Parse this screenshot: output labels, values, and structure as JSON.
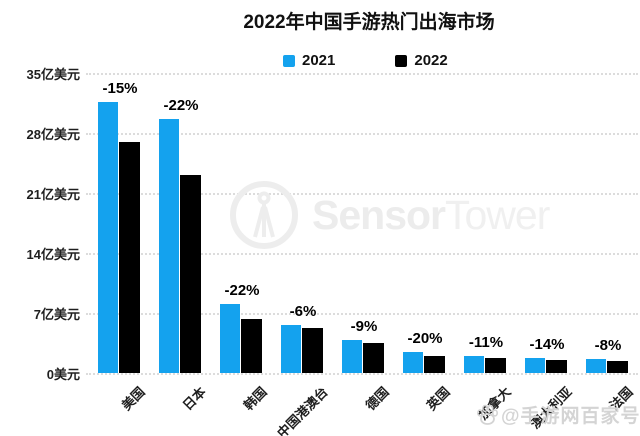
{
  "title": "2022年中国手游热门出海市场",
  "chart_data": {
    "type": "bar",
    "title": "2022年中国手游热门出海市场",
    "categories": [
      "美国",
      "日本",
      "韩国",
      "中国港澳台",
      "德国",
      "英国",
      "加拿大",
      "澳大利亚",
      "法国"
    ],
    "series": [
      {
        "name": "2021",
        "color": "#14a2ee",
        "values": [
          31.6,
          29.6,
          8.1,
          5.6,
          3.8,
          2.5,
          2.0,
          1.75,
          1.6
        ]
      },
      {
        "name": "2022",
        "color": "#000000",
        "values": [
          26.9,
          23.1,
          6.3,
          5.2,
          3.5,
          2.0,
          1.75,
          1.5,
          1.45
        ]
      }
    ],
    "bar_labels": [
      "-15%",
      "-22%",
      "-22%",
      "-6%",
      "-9%",
      "-20%",
      "-11%",
      "-14%",
      "-8%"
    ],
    "y_ticks": [
      "35亿美元",
      "28亿美元",
      "21亿美元",
      "14亿美元",
      "7亿美元",
      "0美元"
    ],
    "y_unit": "亿美元",
    "ylim": [
      0,
      35
    ],
    "grid": "horizontal-dotted",
    "legend_position": "top-center",
    "x_label_rotation_deg": -45
  },
  "legend": {
    "items": [
      {
        "label": "2021",
        "color": "#14a2ee"
      },
      {
        "label": "2022",
        "color": "#000000"
      }
    ]
  },
  "watermarks": {
    "sensortower_bold": "Sensor",
    "sensortower_light": "Tower",
    "byline": "@手游网百家号"
  }
}
